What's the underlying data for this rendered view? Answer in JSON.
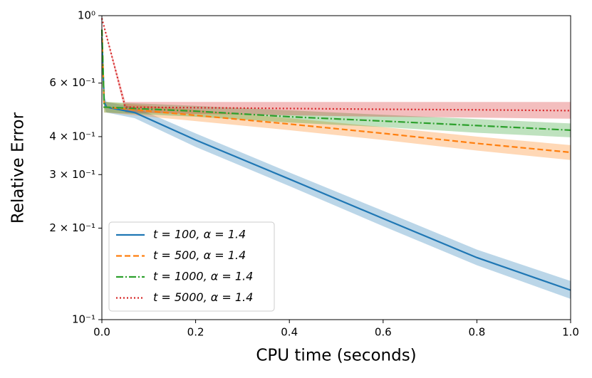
{
  "chart_data": {
    "type": "line",
    "log_y": true,
    "xlabel": "CPU time (seconds)",
    "ylabel": "Relative Error",
    "xlim": [
      0,
      1
    ],
    "ylim": [
      0.1,
      1
    ],
    "xticks": [
      {
        "value": 0,
        "label": "0.0"
      },
      0.2,
      0.4,
      0.6,
      0.8,
      {
        "value": 1,
        "label": "1.0"
      }
    ],
    "yticks": [
      {
        "value": 0.1,
        "label": "10⁻¹"
      },
      {
        "value": 0.2,
        "label": "2 × 10⁻¹"
      },
      {
        "value": 0.3,
        "label": "3 × 10⁻¹"
      },
      {
        "value": 0.4,
        "label": "4 × 10⁻¹"
      },
      {
        "value": 0.6,
        "label": "6 × 10⁻¹"
      },
      {
        "value": 1,
        "label": "10⁰"
      }
    ],
    "legend": "lower left",
    "series": [
      {
        "name": "t = 100, α = 1.4",
        "color": "#1f77b4",
        "style": "solid",
        "x": [
          0,
          0.005,
          0.01,
          0.07,
          0.2,
          0.4,
          0.6,
          0.8,
          1.0
        ],
        "values": [
          0.85,
          0.52,
          0.5,
          0.48,
          0.39,
          0.29,
          0.215,
          0.16,
          0.125
        ],
        "lower": [
          0.85,
          0.5,
          0.48,
          0.46,
          0.37,
          0.275,
          0.203,
          0.151,
          0.117
        ],
        "upper": [
          0.85,
          0.54,
          0.52,
          0.5,
          0.41,
          0.305,
          0.228,
          0.17,
          0.134
        ]
      },
      {
        "name": "t = 500, α = 1.4",
        "color": "#ff7f0e",
        "style": "dashed",
        "x": [
          0,
          0.005,
          0.01,
          0.07,
          0.2,
          0.4,
          0.6,
          0.8,
          1.0
        ],
        "values": [
          0.9,
          0.5,
          0.5,
          0.49,
          0.47,
          0.44,
          0.41,
          0.38,
          0.355
        ],
        "lower": [
          0.9,
          0.48,
          0.48,
          0.47,
          0.45,
          0.42,
          0.39,
          0.36,
          0.335
        ],
        "upper": [
          0.9,
          0.52,
          0.52,
          0.51,
          0.49,
          0.46,
          0.43,
          0.4,
          0.375
        ]
      },
      {
        "name": "t = 1000, α = 1.4",
        "color": "#2ca02c",
        "style": "dashdot",
        "x": [
          0,
          0.005,
          0.01,
          0.07,
          0.2,
          0.4,
          0.6,
          0.8,
          1.0
        ],
        "values": [
          0.9,
          0.5,
          0.5,
          0.495,
          0.485,
          0.465,
          0.45,
          0.435,
          0.42
        ],
        "lower": [
          0.9,
          0.48,
          0.48,
          0.475,
          0.465,
          0.445,
          0.43,
          0.412,
          0.398
        ],
        "upper": [
          0.9,
          0.52,
          0.52,
          0.515,
          0.505,
          0.488,
          0.472,
          0.457,
          0.442
        ]
      },
      {
        "name": "t = 5000, α = 1.4",
        "color": "#d62728",
        "style": "dotted",
        "x": [
          0,
          0.05,
          0.2,
          0.4,
          0.6,
          0.8,
          1.0
        ],
        "values": [
          0.98,
          0.5,
          0.498,
          0.495,
          0.492,
          0.49,
          0.487
        ],
        "lower": [
          0.98,
          0.48,
          0.475,
          0.47,
          0.465,
          0.462,
          0.458
        ],
        "upper": [
          0.98,
          0.52,
          0.52,
          0.52,
          0.52,
          0.52,
          0.52
        ]
      }
    ]
  }
}
